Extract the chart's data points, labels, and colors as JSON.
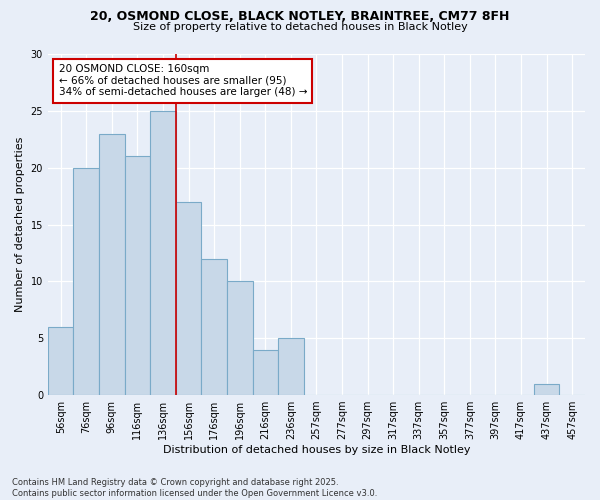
{
  "title1": "20, OSMOND CLOSE, BLACK NOTLEY, BRAINTREE, CM77 8FH",
  "title2": "Size of property relative to detached houses in Black Notley",
  "xlabel": "Distribution of detached houses by size in Black Notley",
  "ylabel": "Number of detached properties",
  "footer1": "Contains HM Land Registry data © Crown copyright and database right 2025.",
  "footer2": "Contains public sector information licensed under the Open Government Licence v3.0.",
  "bin_labels": [
    "56sqm",
    "76sqm",
    "96sqm",
    "116sqm",
    "136sqm",
    "156sqm",
    "176sqm",
    "196sqm",
    "216sqm",
    "236sqm",
    "257sqm",
    "277sqm",
    "297sqm",
    "317sqm",
    "337sqm",
    "357sqm",
    "377sqm",
    "397sqm",
    "417sqm",
    "437sqm",
    "457sqm"
  ],
  "bar_values": [
    6,
    20,
    23,
    21,
    25,
    17,
    12,
    10,
    4,
    5,
    0,
    0,
    0,
    0,
    0,
    0,
    0,
    0,
    0,
    1,
    0
  ],
  "bar_color": "#c8d8e8",
  "bar_edge_color": "#7aaac8",
  "vline_x_index": 5,
  "vline_color": "#cc0000",
  "annotation_text": "20 OSMOND CLOSE: 160sqm\n← 66% of detached houses are smaller (95)\n34% of semi-detached houses are larger (48) →",
  "annotation_box_color": "white",
  "annotation_box_edge_color": "#cc0000",
  "ylim": [
    0,
    30
  ],
  "yticks": [
    0,
    5,
    10,
    15,
    20,
    25,
    30
  ],
  "bg_color": "#e8eef8",
  "plot_bg_color": "#e8eef8"
}
